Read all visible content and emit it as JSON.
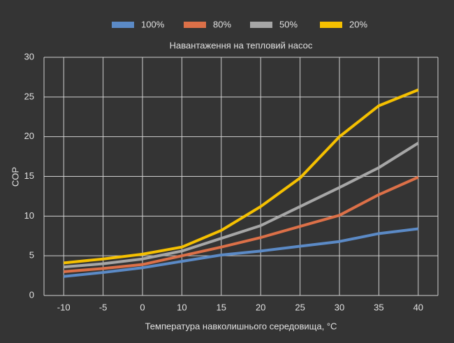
{
  "chart_data": {
    "type": "line",
    "title": "Навантаження на тепловий насос",
    "x_label": "Температура навколишнього середовища, °С",
    "y_label": "COP",
    "categories": [
      "-10",
      "-5",
      "0",
      "10",
      "15",
      "20",
      "25",
      "30",
      "35",
      "40"
    ],
    "series": [
      {
        "name": "100%",
        "color": "#5b8ac6",
        "values": [
          2.4,
          2.9,
          3.5,
          4.3,
          5.1,
          5.6,
          6.2,
          6.8,
          7.8,
          8.4
        ]
      },
      {
        "name": "80%",
        "color": "#dc7048",
        "values": [
          3.0,
          3.4,
          3.9,
          5.0,
          6.1,
          7.3,
          8.7,
          10.1,
          12.7,
          14.9
        ]
      },
      {
        "name": "50%",
        "color": "#a6a6a6",
        "values": [
          3.6,
          4.0,
          4.6,
          5.6,
          7.2,
          8.8,
          11.2,
          13.6,
          16.1,
          19.2
        ]
      },
      {
        "name": "20%",
        "color": "#f5c000",
        "values": [
          4.1,
          4.6,
          5.2,
          6.1,
          8.2,
          11.2,
          14.8,
          20.0,
          23.9,
          25.9
        ]
      }
    ],
    "ylim": [
      0,
      30
    ],
    "yticks": [
      0,
      5,
      10,
      15,
      20,
      25,
      30
    ],
    "grid": true,
    "legend": "top"
  }
}
